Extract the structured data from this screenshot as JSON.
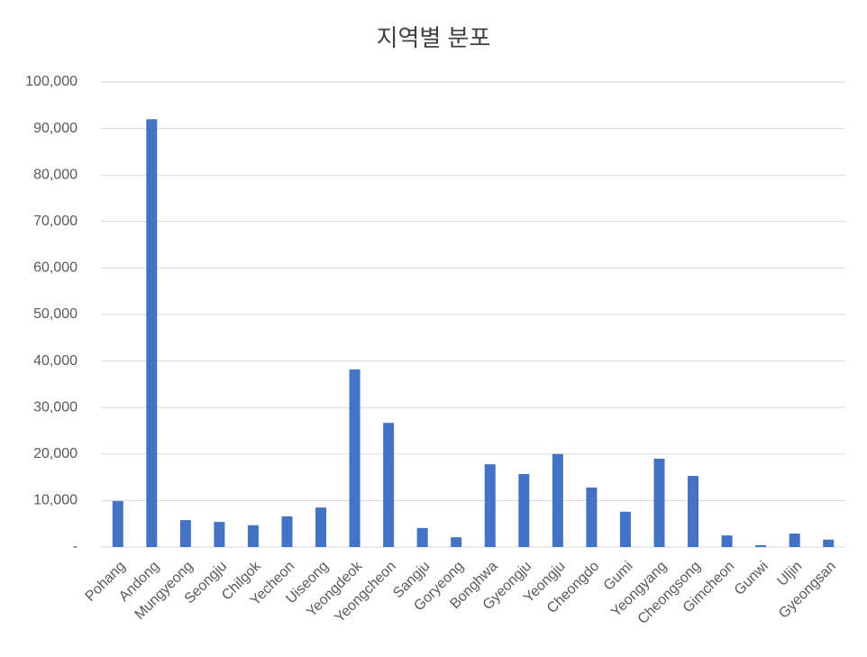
{
  "chart_data": {
    "type": "bar",
    "title": "지역별 분포",
    "categories": [
      "Pohang",
      "Andong",
      "Mungyeong",
      "Seongju",
      "Chilgok",
      "Yecheon",
      "Uiseong",
      "Yeongdeok",
      "Yeongcheon",
      "Sangju",
      "Goryeong",
      "Bonghwa",
      "Gyeongju",
      "Yeongju",
      "Cheongdo",
      "Gumi",
      "Yeongyang",
      "Cheongsong",
      "Gimcheon",
      "Gunwi",
      "Uljin",
      "Gyeongsan"
    ],
    "values": [
      9900,
      92000,
      5800,
      5400,
      4700,
      6600,
      8500,
      38200,
      26700,
      4100,
      2100,
      17800,
      15700,
      20000,
      12800,
      7600,
      19000,
      15300,
      2500,
      400,
      2900,
      1600
    ],
    "color": "#4472c4",
    "ylim": [
      0,
      100000
    ],
    "yticks": [
      {
        "value": 0,
        "label": "-"
      },
      {
        "value": 10000,
        "label": "10,000"
      },
      {
        "value": 20000,
        "label": "20,000"
      },
      {
        "value": 30000,
        "label": "30,000"
      },
      {
        "value": 40000,
        "label": "40,000"
      },
      {
        "value": 50000,
        "label": "50,000"
      },
      {
        "value": 60000,
        "label": "60,000"
      },
      {
        "value": 70000,
        "label": "70,000"
      },
      {
        "value": 80000,
        "label": "80,000"
      },
      {
        "value": 90000,
        "label": "90,000"
      },
      {
        "value": 100000,
        "label": "100,000"
      }
    ],
    "grid": true
  }
}
